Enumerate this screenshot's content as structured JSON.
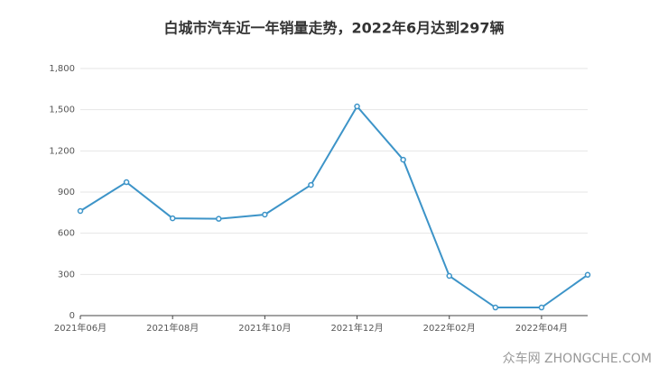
{
  "chart_data": {
    "type": "line",
    "title": "白城市汽车近一年销量走势，2022年6月达到297辆",
    "categories": [
      "2021年06月",
      null,
      "2021年08月",
      null,
      "2021年10月",
      null,
      "2021年12月",
      null,
      "2022年02月",
      null,
      "2022年04月",
      null
    ],
    "values": [
      762,
      972,
      709,
      705,
      736,
      952,
      1524,
      1136,
      289,
      59,
      59,
      297
    ],
    "color": "#3d94c8",
    "ylim": [
      0,
      1800
    ],
    "yticks": [
      0,
      300,
      600,
      900,
      {
        "value": 1200,
        "label": "1,200"
      },
      {
        "value": 1500,
        "label": "1,500"
      },
      {
        "value": 1800,
        "label": "1,800"
      }
    ],
    "grid": true,
    "watermark": "众车网 ZHONGCHE.COM"
  }
}
